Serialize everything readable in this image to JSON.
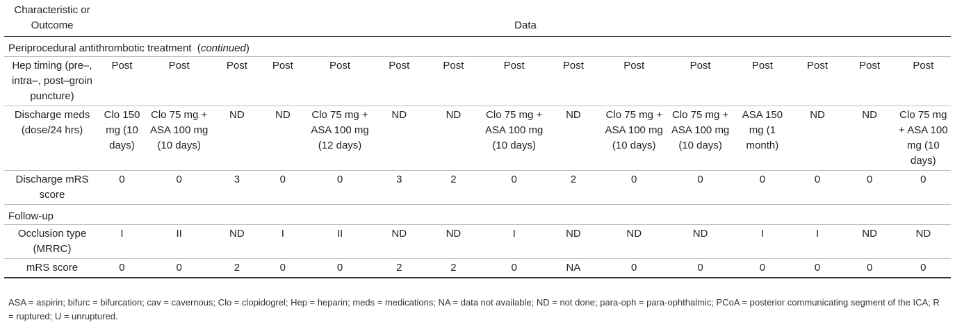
{
  "header": {
    "col1": "Characteristic or Outcome",
    "col2": "Data"
  },
  "section1": {
    "label": "Periprocedural antithrombotic treatment",
    "suffix": "continued"
  },
  "rows1": [
    {
      "label": "Hep timing (pre–, intra–, post–groin puncture)",
      "cells": [
        "Post",
        "Post",
        "Post",
        "Post",
        "Post",
        "Post",
        "Post",
        "Post",
        "Post",
        "Post",
        "Post",
        "Post",
        "Post",
        "Post",
        "Post"
      ]
    },
    {
      "label": "Discharge meds (dose/24 hrs)",
      "cells": [
        "Clo 150 mg (10 days)",
        "Clo 75 mg + ASA 100 mg (10 days)",
        "ND",
        "ND",
        "Clo 75 mg + ASA 100 mg (12 days)",
        "ND",
        "ND",
        "Clo 75 mg + ASA 100 mg (10 days)",
        "ND",
        "Clo 75 mg + ASA 100 mg (10 days)",
        "Clo 75 mg + ASA 100 mg (10 days)",
        "ASA 150 mg (1 month)",
        "ND",
        "ND",
        "Clo 75 mg + ASA 100 mg (10 days)"
      ]
    },
    {
      "label": "Discharge mRS score",
      "cells": [
        "0",
        "0",
        "3",
        "0",
        "0",
        "3",
        "2",
        "0",
        "2",
        "0",
        "0",
        "0",
        "0",
        "0",
        "0"
      ]
    }
  ],
  "section2": {
    "label": "Follow-up"
  },
  "rows2": [
    {
      "label": "Occlusion type (MRRC)",
      "cells": [
        "I",
        "II",
        "ND",
        "I",
        "II",
        "ND",
        "ND",
        "I",
        "ND",
        "ND",
        "ND",
        "I",
        "I",
        "ND",
        "ND"
      ]
    },
    {
      "label": "mRS score",
      "cells": [
        "0",
        "0",
        "2",
        "0",
        "0",
        "2",
        "2",
        "0",
        "NA",
        "0",
        "0",
        "0",
        "0",
        "0",
        "0"
      ]
    }
  ],
  "footnote": "ASA = aspirin; bifurc = bifurcation; cav = cavernous; Clo = clopidogrel; Hep = heparin; meds = medications; NA = data not available; ND = not done; para-oph = para-ophthalmic; PCoA = posterior communicating segment of the ICA; R = ruptured; U = unruptured."
}
